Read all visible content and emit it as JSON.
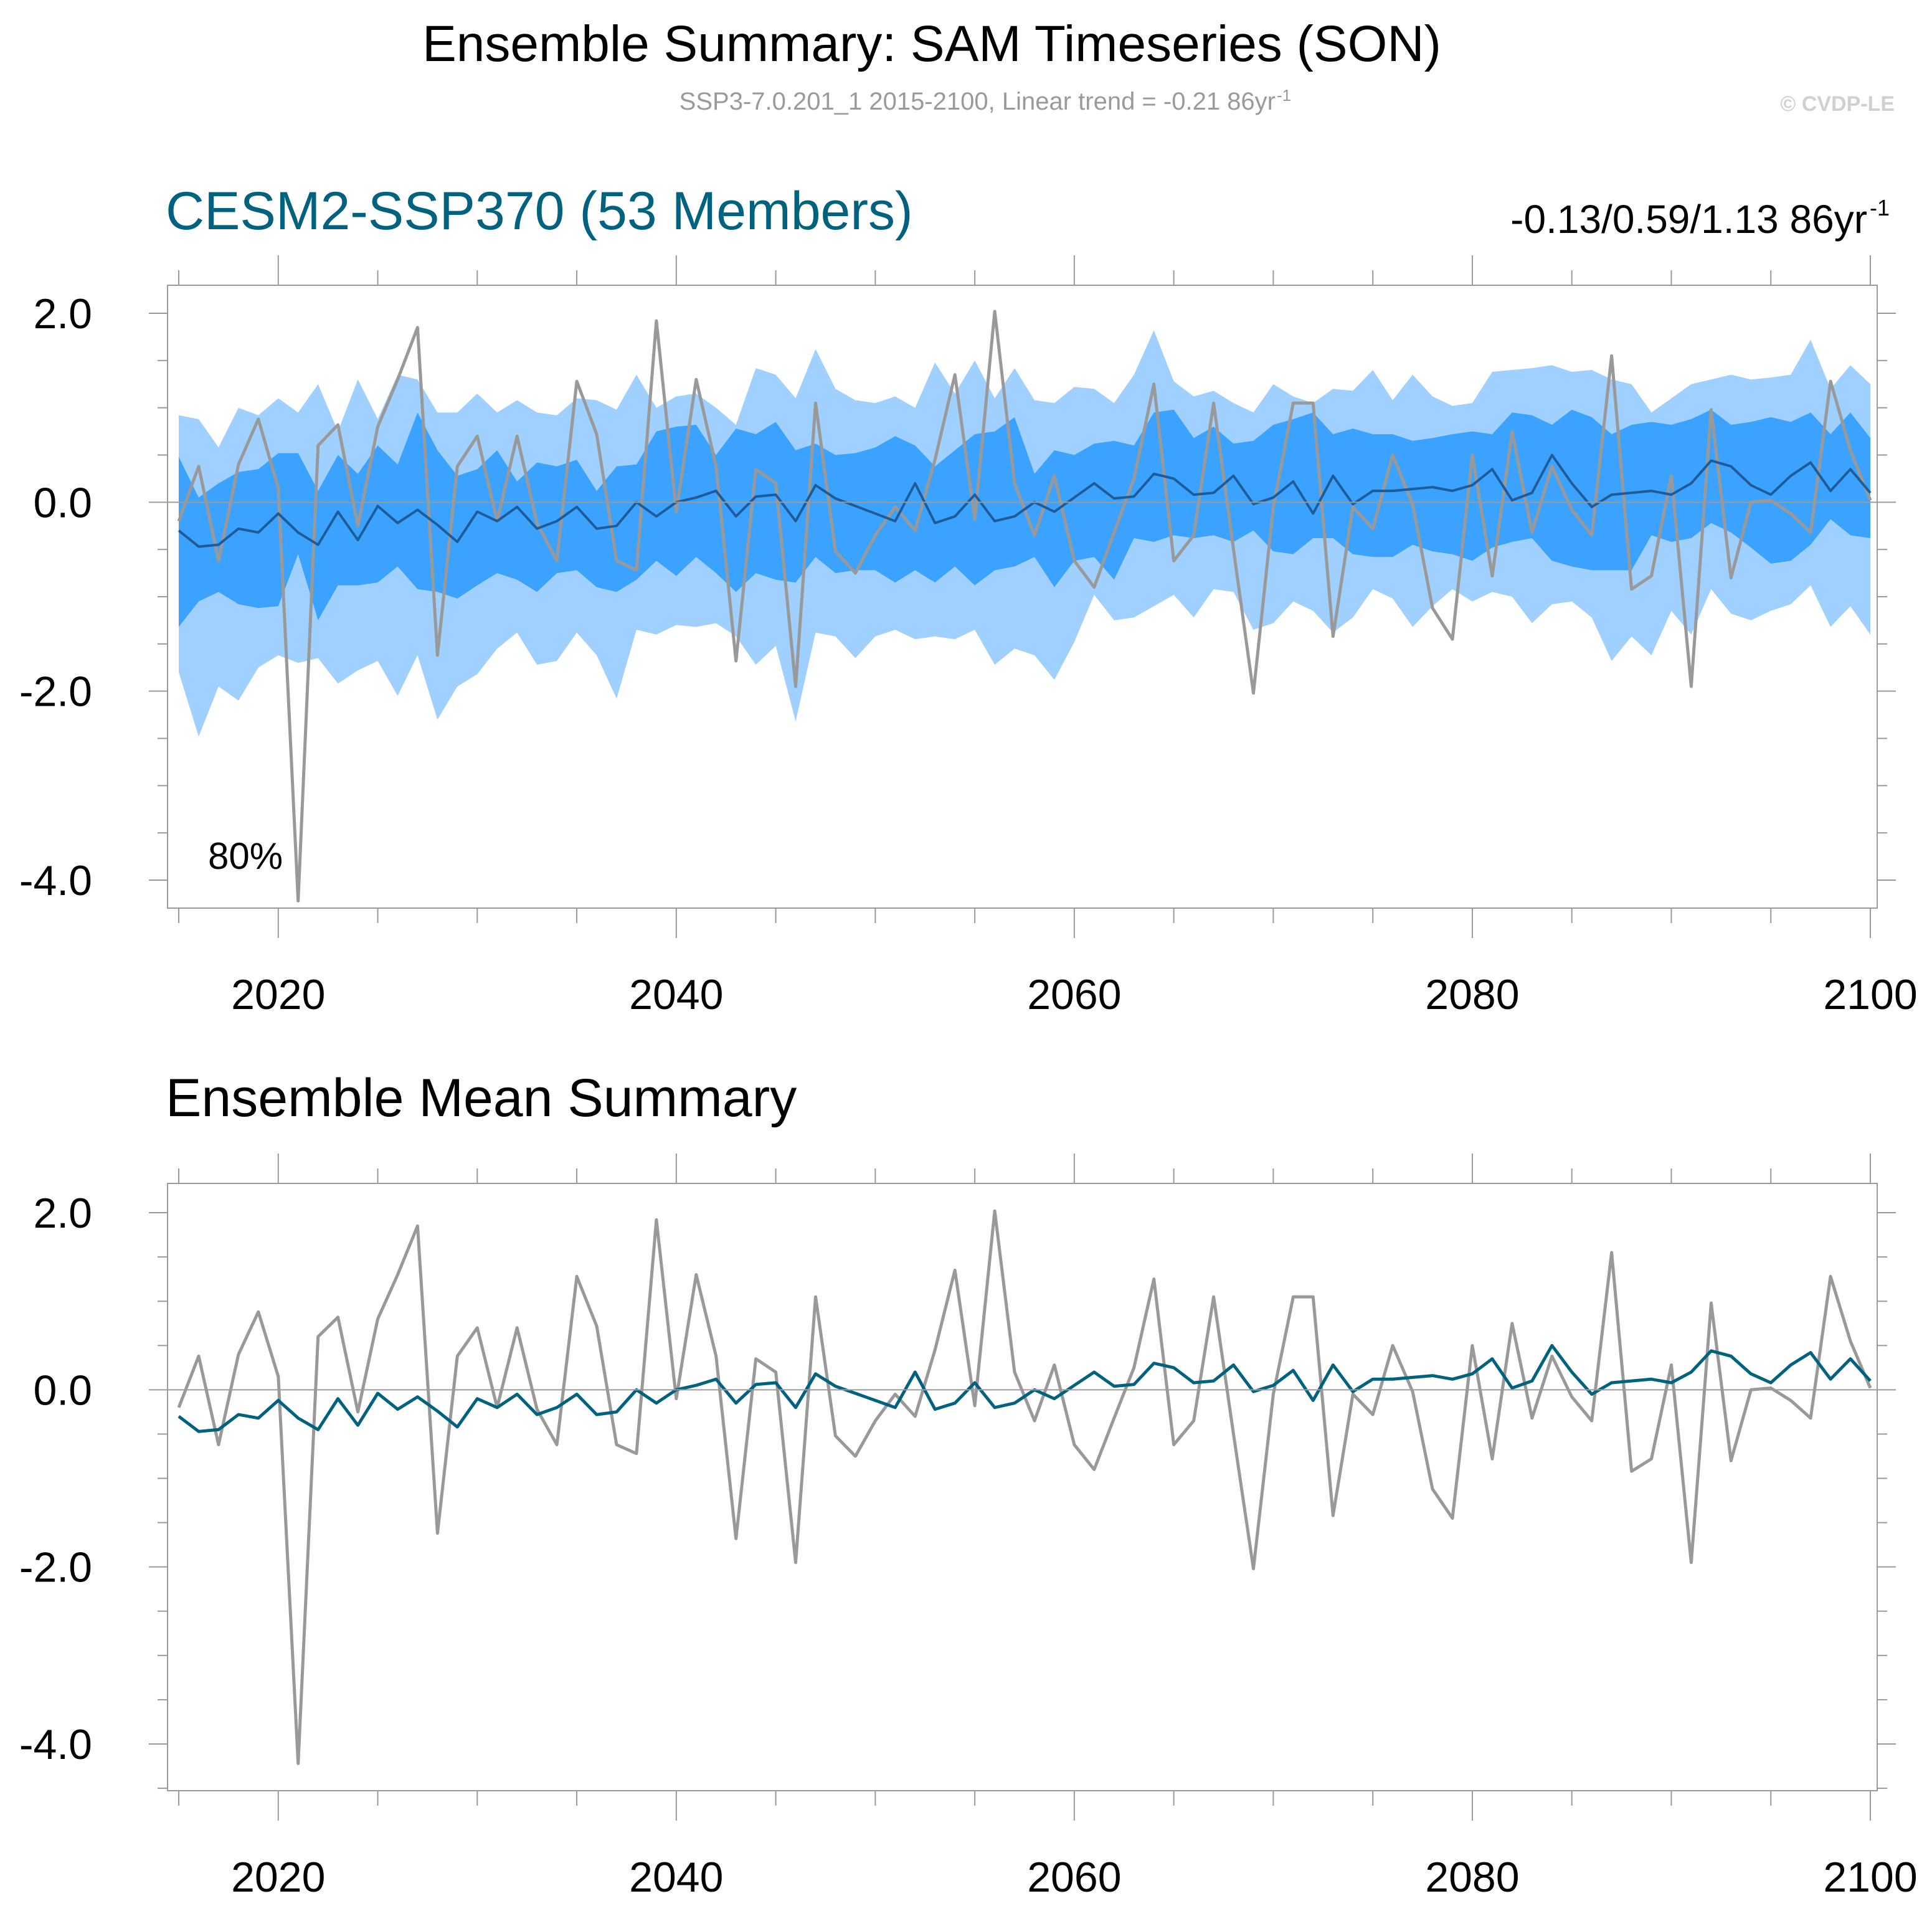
{
  "header": {
    "title": "Ensemble Summary: SAM Timeseries (SON)",
    "subtitle_main": "SSP3-7.0.201_1 2015-2100, Linear trend = -0.21 86yr",
    "subtitle_sup": "-1",
    "copyright": "© CVDP-LE"
  },
  "colors": {
    "spread_outer": "#9fd0ff",
    "spread_inner": "#3ba3ff",
    "ensemble_mean_top": "#1e5c99",
    "ensemble_mean": "#00627e",
    "observation": "#999999",
    "panel_title_top": "#00627e",
    "panel_title_bottom": "#000000"
  },
  "chart_data": [
    {
      "type": "area",
      "title": "CESM2-SSP370 (53 Members)",
      "stats_main": "-0.13/0.59/1.13 86yr",
      "stats_sup": "-1",
      "annotation": "80%",
      "xlabel": "",
      "ylabel": "",
      "xlim": [
        2014,
        2101
      ],
      "ylim": [
        -4.3,
        2.0
      ],
      "grid": false,
      "x_ticks": [
        "2020",
        "2040",
        "2060",
        "2080",
        "2100"
      ],
      "y_ticks": [
        "2.0",
        "0.0",
        "-2.0",
        "-4.0"
      ],
      "x": [
        2015,
        2016,
        2017,
        2018,
        2019,
        2020,
        2021,
        2022,
        2023,
        2024,
        2025,
        2026,
        2027,
        2028,
        2029,
        2030,
        2031,
        2032,
        2033,
        2034,
        2035,
        2036,
        2037,
        2038,
        2039,
        2040,
        2041,
        2042,
        2043,
        2044,
        2045,
        2046,
        2047,
        2048,
        2049,
        2050,
        2051,
        2052,
        2053,
        2054,
        2055,
        2056,
        2057,
        2058,
        2059,
        2060,
        2061,
        2062,
        2063,
        2064,
        2065,
        2066,
        2067,
        2068,
        2069,
        2070,
        2071,
        2072,
        2073,
        2074,
        2075,
        2076,
        2077,
        2078,
        2079,
        2080,
        2081,
        2082,
        2083,
        2084,
        2085,
        2086,
        2087,
        2088,
        2089,
        2090,
        2091,
        2092,
        2093,
        2094,
        2095,
        2096,
        2097,
        2098,
        2099,
        2100
      ],
      "series": [
        {
          "name": "ensemble range (outer)",
          "kind": "band",
          "upper": [
            0.92,
            0.88,
            0.58,
            1.0,
            0.92,
            1.1,
            0.95,
            1.25,
            0.75,
            1.3,
            0.88,
            1.35,
            1.3,
            0.95,
            0.95,
            1.15,
            0.95,
            1.08,
            0.95,
            0.92,
            1.1,
            1.08,
            0.98,
            1.35,
            1.0,
            1.12,
            1.15,
            1.0,
            0.82,
            1.42,
            1.35,
            1.1,
            1.62,
            1.2,
            1.08,
            1.05,
            1.12,
            1.0,
            1.48,
            1.15,
            1.5,
            1.1,
            1.42,
            1.08,
            1.05,
            1.22,
            1.2,
            1.05,
            1.35,
            1.82,
            1.28,
            1.12,
            1.18,
            1.05,
            0.95,
            1.25,
            1.12,
            1.05,
            1.2,
            1.18,
            1.4,
            1.08,
            1.35,
            1.12,
            1.02,
            1.05,
            1.38,
            1.4,
            1.42,
            1.45,
            1.38,
            1.4,
            1.3,
            1.25,
            0.95,
            1.1,
            1.25,
            1.3,
            1.35,
            1.3,
            1.32,
            1.35,
            1.72,
            1.2,
            1.45,
            1.25
          ],
          "lower": [
            -1.8,
            -2.48,
            -1.95,
            -2.1,
            -1.75,
            -1.62,
            -1.7,
            -1.65,
            -1.92,
            -1.78,
            -1.68,
            -2.05,
            -1.62,
            -2.3,
            -1.95,
            -1.82,
            -1.55,
            -1.38,
            -1.72,
            -1.68,
            -1.38,
            -1.62,
            -2.08,
            -1.35,
            -1.4,
            -1.3,
            -1.32,
            -1.28,
            -1.42,
            -1.72,
            -1.52,
            -2.32,
            -1.38,
            -1.42,
            -1.65,
            -1.42,
            -1.35,
            -1.45,
            -1.42,
            -1.45,
            -1.35,
            -1.72,
            -1.55,
            -1.62,
            -1.88,
            -1.48,
            -0.98,
            -1.25,
            -1.22,
            -1.1,
            -0.98,
            -1.22,
            -0.92,
            -0.95,
            -1.35,
            -1.28,
            -1.05,
            -1.15,
            -1.38,
            -1.22,
            -0.92,
            -1.02,
            -1.32,
            -1.1,
            -0.92,
            -1.05,
            -0.95,
            -1.0,
            -1.28,
            -1.08,
            -1.05,
            -1.22,
            -1.68,
            -1.42,
            -1.62,
            -1.15,
            -1.4,
            -0.92,
            -1.18,
            -1.25,
            -1.15,
            -1.08,
            -0.88,
            -1.32,
            -1.1,
            -1.4
          ]
        },
        {
          "name": "ensemble range (inner)",
          "kind": "band",
          "upper": [
            0.48,
            0.05,
            0.2,
            0.32,
            0.35,
            0.52,
            0.52,
            0.12,
            0.5,
            0.3,
            0.6,
            0.4,
            0.95,
            0.55,
            0.28,
            0.35,
            0.55,
            0.22,
            0.42,
            0.38,
            0.45,
            0.12,
            0.38,
            0.4,
            0.75,
            0.8,
            0.82,
            0.5,
            0.78,
            0.72,
            0.85,
            0.55,
            0.62,
            0.5,
            0.52,
            0.58,
            0.7,
            0.6,
            0.38,
            0.55,
            0.72,
            0.75,
            0.9,
            0.3,
            0.55,
            0.5,
            0.62,
            0.65,
            0.6,
            0.95,
            0.98,
            0.68,
            0.8,
            0.62,
            0.65,
            0.82,
            0.88,
            0.95,
            0.72,
            0.78,
            0.72,
            0.72,
            0.65,
            0.68,
            0.72,
            0.75,
            0.72,
            0.95,
            0.92,
            0.82,
            0.98,
            0.9,
            0.72,
            0.82,
            0.85,
            0.82,
            0.88,
            0.98,
            0.82,
            0.85,
            0.9,
            0.85,
            0.95,
            0.72,
            0.95,
            0.68
          ],
          "lower": [
            -1.32,
            -1.05,
            -0.95,
            -1.08,
            -1.12,
            -1.1,
            -0.55,
            -1.25,
            -0.88,
            -0.88,
            -0.85,
            -0.68,
            -0.92,
            -0.95,
            -1.02,
            -0.88,
            -0.75,
            -0.82,
            -0.95,
            -0.75,
            -0.72,
            -0.9,
            -0.95,
            -0.82,
            -0.62,
            -0.78,
            -0.58,
            -0.75,
            -0.95,
            -0.75,
            -0.82,
            -0.85,
            -0.58,
            -0.75,
            -0.72,
            -0.72,
            -0.85,
            -0.72,
            -0.85,
            -0.68,
            -0.88,
            -0.72,
            -0.68,
            -0.58,
            -0.9,
            -0.62,
            -0.58,
            -0.82,
            -0.38,
            -0.42,
            -0.35,
            -0.38,
            -0.35,
            -0.42,
            -0.3,
            -0.52,
            -0.55,
            -0.38,
            -0.38,
            -0.55,
            -0.58,
            -0.58,
            -0.45,
            -0.52,
            -0.55,
            -0.62,
            -0.48,
            -0.42,
            -0.38,
            -0.62,
            -0.68,
            -0.72,
            -0.72,
            -0.72,
            -0.35,
            -0.42,
            -0.38,
            -0.22,
            -0.32,
            -0.48,
            -0.65,
            -0.62,
            -0.45,
            -0.18,
            -0.35,
            -0.38
          ]
        },
        {
          "name": "ensemble mean",
          "kind": "line",
          "values": [
            -0.3,
            -0.47,
            -0.45,
            -0.28,
            -0.32,
            -0.12,
            -0.32,
            -0.45,
            -0.1,
            -0.4,
            -0.04,
            -0.22,
            -0.08,
            -0.24,
            -0.42,
            -0.1,
            -0.2,
            -0.05,
            -0.28,
            -0.2,
            -0.05,
            -0.28,
            -0.25,
            0.0,
            -0.15,
            0.0,
            0.05,
            0.12,
            -0.15,
            0.06,
            0.08,
            -0.2,
            0.18,
            0.04,
            -0.04,
            -0.12,
            -0.2,
            0.2,
            -0.22,
            -0.15,
            0.08,
            -0.2,
            -0.15,
            0.0,
            -0.1,
            0.05,
            0.2,
            0.04,
            0.06,
            0.3,
            0.25,
            0.08,
            0.1,
            0.28,
            -0.02,
            0.05,
            0.22,
            -0.12,
            0.28,
            -0.02,
            0.12,
            0.12,
            0.14,
            0.16,
            0.12,
            0.18,
            0.35,
            0.02,
            0.1,
            0.5,
            0.2,
            -0.05,
            0.08,
            0.1,
            0.12,
            0.08,
            0.2,
            0.44,
            0.38,
            0.18,
            0.08,
            0.28,
            0.42,
            0.12,
            0.35,
            0.1
          ]
        },
        {
          "name": "observations",
          "kind": "line",
          "values": [
            -0.2,
            0.38,
            -0.62,
            0.4,
            0.88,
            0.15,
            -4.22,
            0.6,
            0.82,
            -0.25,
            0.8,
            1.3,
            1.85,
            -1.62,
            0.38,
            0.7,
            -0.2,
            0.7,
            -0.22,
            -0.62,
            1.28,
            0.72,
            -0.62,
            -0.72,
            1.92,
            -0.1,
            1.3,
            0.38,
            -1.68,
            0.35,
            0.2,
            -1.95,
            1.05,
            -0.52,
            -0.75,
            -0.35,
            -0.05,
            -0.3,
            0.45,
            1.35,
            -0.18,
            2.02,
            0.2,
            -0.35,
            0.28,
            -0.62,
            -0.9,
            -0.32,
            0.25,
            1.25,
            -0.62,
            -0.35,
            1.05,
            -0.5,
            -2.02,
            -0.05,
            1.05,
            1.05,
            -1.42,
            -0.05,
            -0.28,
            0.5,
            -0.02,
            -1.12,
            -1.45,
            0.5,
            -0.78,
            0.75,
            -0.32,
            0.38,
            -0.08,
            -0.35,
            1.55,
            -0.92,
            -0.78,
            0.28,
            -1.95,
            0.98,
            -0.8,
            0.0,
            0.02,
            -0.12,
            -0.32,
            1.28,
            0.55,
            0.02
          ]
        }
      ]
    },
    {
      "type": "line",
      "title": "Ensemble Mean Summary",
      "xlabel": "",
      "ylabel": "",
      "xlim": [
        2014,
        2101
      ],
      "ylim": [
        -4.5,
        2.35
      ],
      "grid": false,
      "x_ticks": [
        "2020",
        "2040",
        "2060",
        "2080",
        "2100"
      ],
      "y_ticks": [
        "2.0",
        "0.0",
        "-2.0",
        "-4.0"
      ],
      "series_ref": "same x, ensemble mean and observations as panel 1"
    }
  ]
}
